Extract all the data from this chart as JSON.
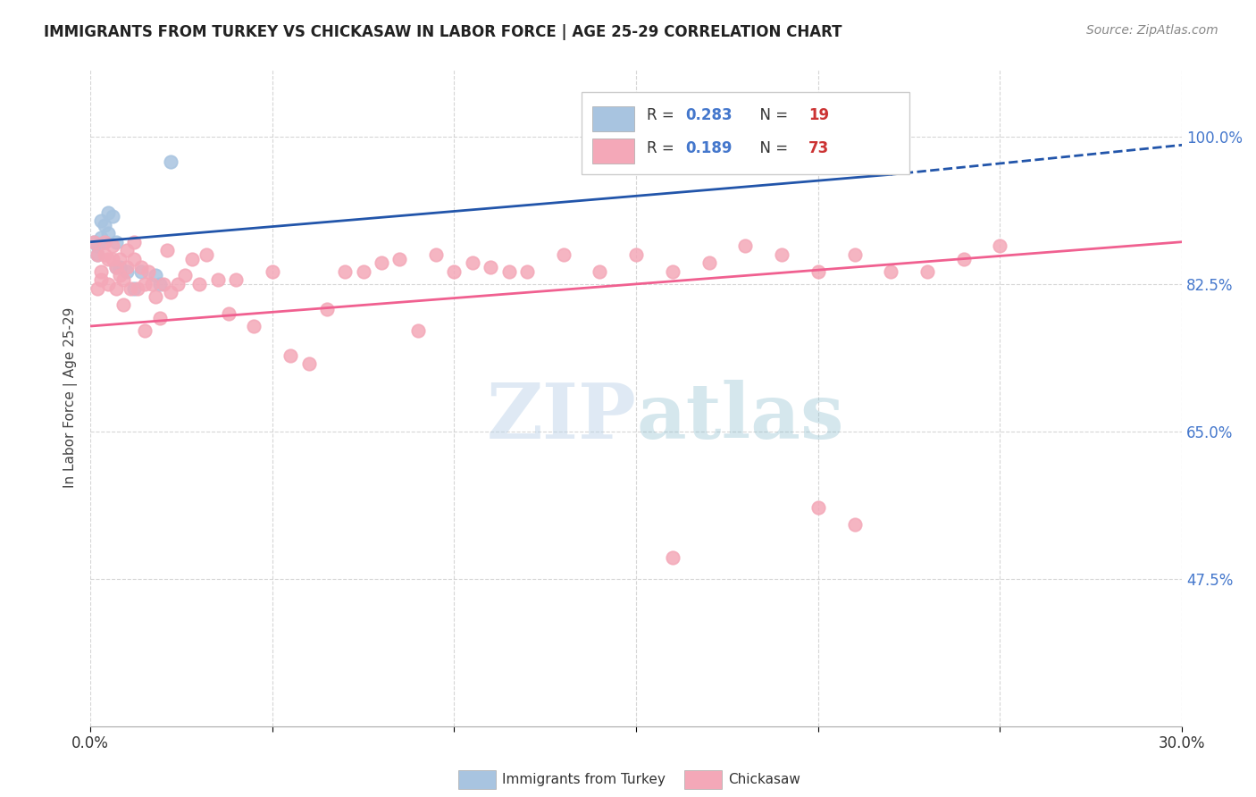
{
  "title": "IMMIGRANTS FROM TURKEY VS CHICKASAW IN LABOR FORCE | AGE 25-29 CORRELATION CHART",
  "source": "Source: ZipAtlas.com",
  "ylabel": "In Labor Force | Age 25-29",
  "xlim": [
    0.0,
    0.3
  ],
  "ylim": [
    0.3,
    1.08
  ],
  "xticks": [
    0.0,
    0.05,
    0.1,
    0.15,
    0.2,
    0.25,
    0.3
  ],
  "xticklabels": [
    "0.0%",
    "",
    "",
    "",
    "",
    "",
    "30.0%"
  ],
  "yticks": [
    0.475,
    0.65,
    0.825,
    1.0
  ],
  "yticklabels": [
    "47.5%",
    "65.0%",
    "82.5%",
    "100.0%"
  ],
  "turkey_color": "#a8c4e0",
  "chickasaw_color": "#f4a8b8",
  "turkey_line_color": "#2255aa",
  "chickasaw_line_color": "#f06090",
  "watermark_color": "#c8ddf0",
  "turkey_x": [
    0.001,
    0.002,
    0.002,
    0.003,
    0.003,
    0.004,
    0.004,
    0.005,
    0.005,
    0.006,
    0.007,
    0.007,
    0.008,
    0.01,
    0.012,
    0.014,
    0.018,
    0.019,
    0.022
  ],
  "turkey_y": [
    0.875,
    0.87,
    0.86,
    0.9,
    0.88,
    0.895,
    0.875,
    0.91,
    0.885,
    0.905,
    0.875,
    0.845,
    0.845,
    0.84,
    0.82,
    0.84,
    0.835,
    0.825,
    0.97
  ],
  "chickasaw_x": [
    0.001,
    0.002,
    0.002,
    0.003,
    0.003,
    0.004,
    0.004,
    0.005,
    0.005,
    0.006,
    0.006,
    0.007,
    0.007,
    0.008,
    0.008,
    0.009,
    0.009,
    0.01,
    0.01,
    0.011,
    0.012,
    0.012,
    0.013,
    0.014,
    0.015,
    0.015,
    0.016,
    0.017,
    0.018,
    0.019,
    0.02,
    0.021,
    0.022,
    0.024,
    0.026,
    0.028,
    0.03,
    0.032,
    0.035,
    0.038,
    0.04,
    0.045,
    0.05,
    0.055,
    0.06,
    0.065,
    0.07,
    0.075,
    0.08,
    0.085,
    0.09,
    0.095,
    0.1,
    0.105,
    0.11,
    0.115,
    0.12,
    0.13,
    0.14,
    0.15,
    0.16,
    0.17,
    0.18,
    0.19,
    0.2,
    0.21,
    0.22,
    0.23,
    0.24,
    0.25,
    0.2,
    0.21,
    0.16
  ],
  "chickasaw_y": [
    0.875,
    0.86,
    0.82,
    0.83,
    0.84,
    0.875,
    0.86,
    0.855,
    0.825,
    0.87,
    0.855,
    0.845,
    0.82,
    0.855,
    0.835,
    0.8,
    0.83,
    0.865,
    0.845,
    0.82,
    0.875,
    0.855,
    0.82,
    0.845,
    0.77,
    0.825,
    0.84,
    0.825,
    0.81,
    0.785,
    0.825,
    0.865,
    0.815,
    0.825,
    0.835,
    0.855,
    0.825,
    0.86,
    0.83,
    0.79,
    0.83,
    0.775,
    0.84,
    0.74,
    0.73,
    0.795,
    0.84,
    0.84,
    0.85,
    0.855,
    0.77,
    0.86,
    0.84,
    0.85,
    0.845,
    0.84,
    0.84,
    0.86,
    0.84,
    0.86,
    0.84,
    0.85,
    0.87,
    0.86,
    0.84,
    0.86,
    0.84,
    0.84,
    0.855,
    0.87,
    0.56,
    0.54,
    0.5
  ],
  "turkey_R": 0.283,
  "turkey_N": 19,
  "chickasaw_R": 0.189,
  "chickasaw_N": 73
}
